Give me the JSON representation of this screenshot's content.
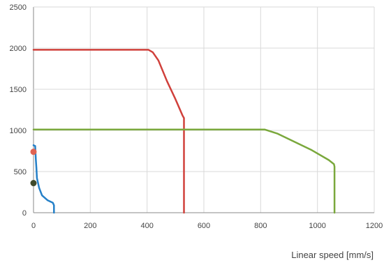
{
  "chart_data": {
    "type": "line",
    "xlabel": "Linear speed [mm/s]",
    "ylabel": "",
    "xlim": [
      0,
      1200
    ],
    "ylim": [
      0,
      2500
    ],
    "x_ticks": [
      0,
      200,
      400,
      600,
      800,
      1000,
      1200
    ],
    "y_ticks": [
      0,
      500,
      1000,
      1500,
      2000,
      2500
    ],
    "grid": true,
    "legend": "none",
    "series": [
      {
        "color": "#d0403b",
        "points": [
          [
            0,
            1980
          ],
          [
            405,
            1980
          ],
          [
            420,
            1950
          ],
          [
            440,
            1850
          ],
          [
            470,
            1600
          ],
          [
            500,
            1380
          ],
          [
            525,
            1180
          ],
          [
            530,
            1150
          ],
          [
            530,
            0
          ]
        ]
      },
      {
        "color": "#7aa83c",
        "points": [
          [
            0,
            1010
          ],
          [
            815,
            1010
          ],
          [
            860,
            960
          ],
          [
            920,
            860
          ],
          [
            980,
            760
          ],
          [
            1040,
            640
          ],
          [
            1058,
            590
          ],
          [
            1060,
            560
          ],
          [
            1060,
            0
          ]
        ]
      },
      {
        "color": "#2580c8",
        "points": [
          [
            0,
            820
          ],
          [
            6,
            810
          ],
          [
            8,
            650
          ],
          [
            10,
            550
          ],
          [
            12,
            420
          ],
          [
            20,
            300
          ],
          [
            30,
            210
          ],
          [
            50,
            150
          ],
          [
            68,
            120
          ],
          [
            72,
            90
          ],
          [
            72,
            0
          ]
        ]
      }
    ],
    "markers": [
      {
        "x": 0,
        "y": 740,
        "color": "#e06352"
      },
      {
        "x": 0,
        "y": 360,
        "color": "#3f4a2c"
      }
    ]
  }
}
